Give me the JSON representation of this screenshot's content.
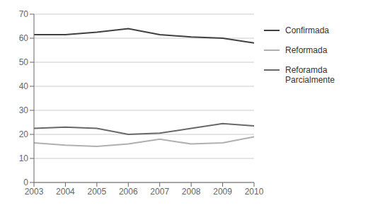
{
  "chart_data": {
    "type": "line",
    "x": [
      2003,
      2004,
      2005,
      2006,
      2007,
      2008,
      2009,
      2010
    ],
    "xlim": [
      2003,
      2010
    ],
    "xticks": [
      2003,
      2004,
      2005,
      2006,
      2007,
      2008,
      2009,
      2010
    ],
    "ylim": [
      0,
      70
    ],
    "yticks": [
      0,
      10,
      20,
      30,
      40,
      50,
      60,
      70
    ],
    "grid": true,
    "legend": "right",
    "series": [
      {
        "name": "Confirmada",
        "color": "#404040",
        "values": [
          61.5,
          61.5,
          62.5,
          64.0,
          61.5,
          60.5,
          60.0,
          58.0
        ]
      },
      {
        "name": "Reformada",
        "color": "#b0b0b0",
        "values": [
          16.5,
          15.5,
          15.0,
          16.0,
          18.0,
          16.0,
          16.5,
          19.0
        ]
      },
      {
        "name": "Reforamda\nParcialmente",
        "color": "#686868",
        "values": [
          22.5,
          23.0,
          22.5,
          20.0,
          20.5,
          22.5,
          24.5,
          23.5
        ]
      }
    ]
  }
}
